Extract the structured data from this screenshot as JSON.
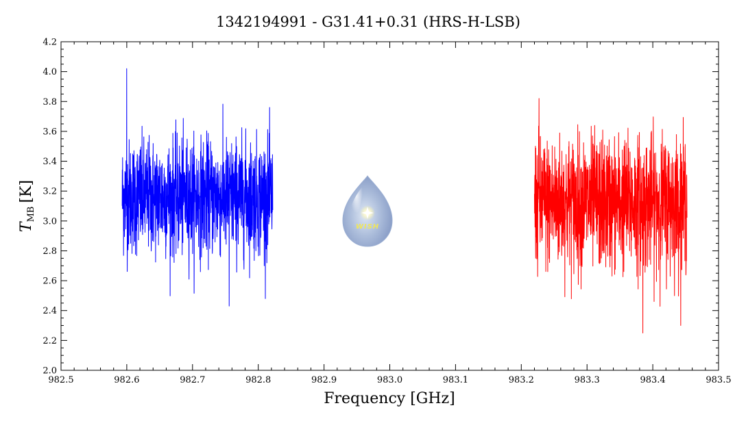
{
  "chart_data": {
    "type": "line",
    "title": "1342194991 - G31.41+0.31 (HRS-H-LSB)",
    "xlabel": "Frequency [GHz]",
    "ylabel": "T",
    "ylabel_subscript": "MB",
    "ylabel_unit": "[K]",
    "xlim": [
      982.5,
      983.5
    ],
    "ylim": [
      2.0,
      4.2
    ],
    "x_ticks": [
      982.5,
      982.6,
      982.7,
      982.8,
      982.9,
      983.0,
      983.1,
      983.2,
      983.3,
      983.4,
      983.5
    ],
    "x_tick_labels": [
      "982.5",
      "982.6",
      "982.7",
      "982.8",
      "982.9",
      "983.0",
      "983.1",
      "983.2",
      "983.3",
      "983.4",
      "983.5"
    ],
    "y_ticks": [
      2.0,
      2.2,
      2.4,
      2.6,
      2.8,
      3.0,
      3.2,
      3.4,
      3.6,
      3.8,
      4.0,
      4.2
    ],
    "y_tick_labels": [
      "2.0",
      "2.2",
      "2.4",
      "2.6",
      "2.8",
      "3.0",
      "3.2",
      "3.4",
      "3.6",
      "3.8",
      "4.0",
      "4.2"
    ],
    "grid": false,
    "series": [
      {
        "color": "#0000ff",
        "x_range": [
          982.593,
          982.822
        ],
        "points": 1100,
        "mean": 3.16,
        "stddev": 0.19,
        "min": 2.43,
        "max": 4.02
      },
      {
        "color": "#ff0000",
        "x_range": [
          983.22,
          983.452
        ],
        "points": 1100,
        "mean": 3.12,
        "stddev": 0.22,
        "min": 2.25,
        "max": 3.82
      }
    ],
    "logo": {
      "text": "WISH",
      "icon": "wish-water-drop-logo"
    }
  }
}
